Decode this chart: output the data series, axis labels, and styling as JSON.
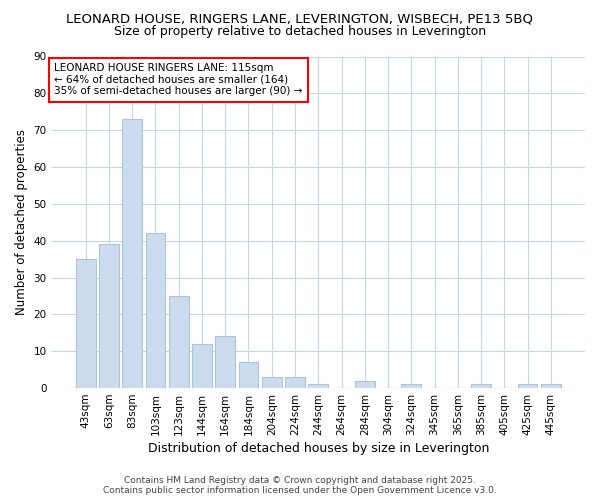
{
  "title1": "LEONARD HOUSE, RINGERS LANE, LEVERINGTON, WISBECH, PE13 5BQ",
  "title2": "Size of property relative to detached houses in Leverington",
  "xlabel": "Distribution of detached houses by size in Leverington",
  "ylabel": "Number of detached properties",
  "categories": [
    "43sqm",
    "63sqm",
    "83sqm",
    "103sqm",
    "123sqm",
    "144sqm",
    "164sqm",
    "184sqm",
    "204sqm",
    "224sqm",
    "244sqm",
    "264sqm",
    "284sqm",
    "304sqm",
    "324sqm",
    "345sqm",
    "365sqm",
    "385sqm",
    "405sqm",
    "425sqm",
    "445sqm"
  ],
  "values": [
    35,
    39,
    73,
    42,
    25,
    12,
    14,
    7,
    3,
    3,
    1,
    0,
    2,
    0,
    1,
    0,
    0,
    1,
    0,
    1,
    1
  ],
  "bar_color": "#ccdcee",
  "bar_edge_color": "#aac4dd",
  "fig_bg_color": "#ffffff",
  "ax_bg_color": "#ffffff",
  "grid_color": "#c8d4e8",
  "annotation_text": "LEONARD HOUSE RINGERS LANE: 115sqm\n← 64% of detached houses are smaller (164)\n35% of semi-detached houses are larger (90) →",
  "annotation_border_color": "red",
  "ylim": [
    0,
    90
  ],
  "yticks": [
    0,
    10,
    20,
    30,
    40,
    50,
    60,
    70,
    80,
    90
  ],
  "footnote": "Contains HM Land Registry data © Crown copyright and database right 2025.\nContains public sector information licensed under the Open Government Licence v3.0.",
  "title1_fontsize": 9.5,
  "title2_fontsize": 9,
  "xlabel_fontsize": 9,
  "ylabel_fontsize": 8.5,
  "tick_fontsize": 7.5,
  "annotation_fontsize": 7.5,
  "footnote_fontsize": 6.5
}
